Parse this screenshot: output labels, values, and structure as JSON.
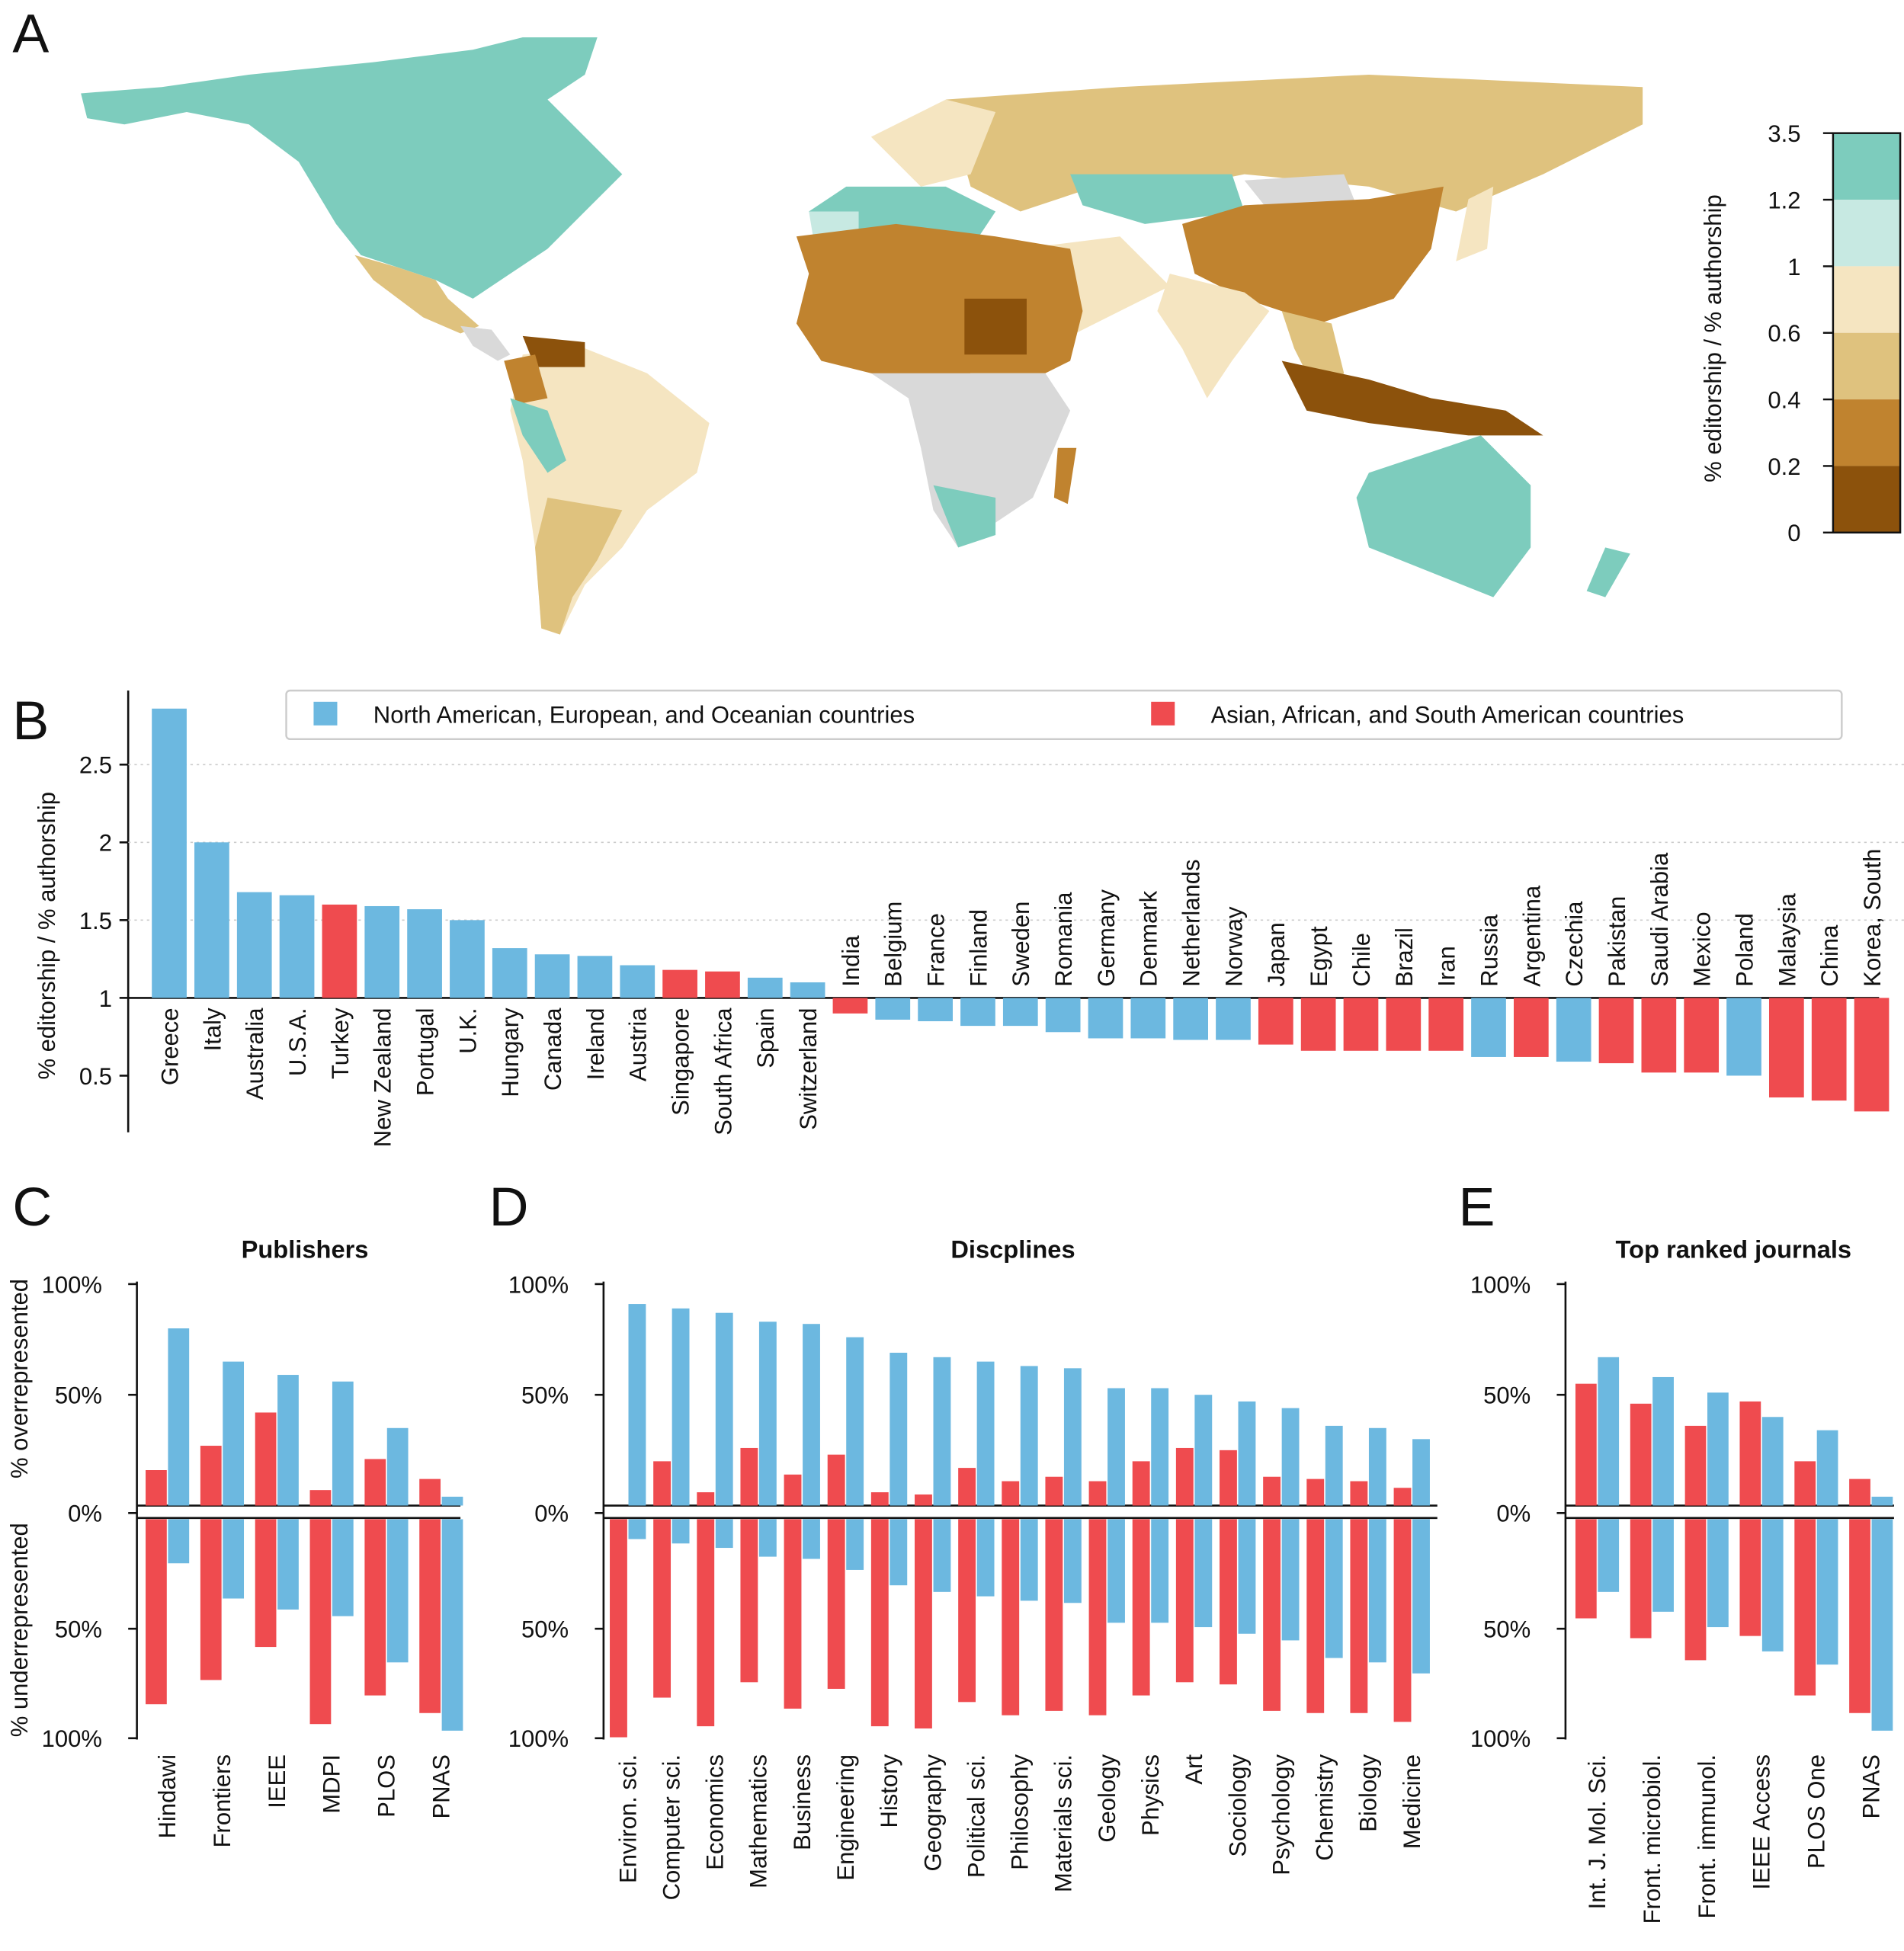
{
  "panel_letters": {
    "a": "A",
    "b": "B",
    "c": "C",
    "d": "D",
    "e": "E"
  },
  "colors": {
    "blue": "#6cb8e0",
    "red": "#ef4b4f",
    "map_nodata": "#d9d9d9"
  },
  "colorbar": {
    "label": "% editorship / % authorship",
    "ticks": [
      "3.5",
      "1.2",
      "1",
      "0.6",
      "0.4",
      "0.2",
      "0"
    ],
    "bins_top_to_bottom": [
      "#7dccbd",
      "#c7e9e2",
      "#f5e5c1",
      "#dfc27e",
      "#c0832f",
      "#8c520c"
    ]
  },
  "chart_data": [
    {
      "type": "bar",
      "panel": "B",
      "ylabel": "% editorship / % authorship",
      "baseline": 1,
      "yticks": [
        "0.5",
        "1",
        "1.5",
        "2",
        "2.5"
      ],
      "ylim": [
        0.2,
        3.0
      ],
      "grid": true,
      "legend": {
        "placement": "top",
        "entries": [
          {
            "name": "North American, European, and Oceanian countries",
            "color": "#6cb8e0"
          },
          {
            "name": "Asian, African, and South American countries",
            "color": "#ef4b4f"
          }
        ]
      },
      "categories": [
        "Greece",
        "Italy",
        "Australia",
        "U.S.A.",
        "Turkey",
        "New Zealand",
        "Portugal",
        "U.K.",
        "Hungary",
        "Canada",
        "Ireland",
        "Austria",
        "Singapore",
        "South Africa",
        "Spain",
        "Switzerland",
        "India",
        "Belgium",
        "France",
        "Finland",
        "Sweden",
        "Romania",
        "Germany",
        "Denmark",
        "Netherlands",
        "Norway",
        "Japan",
        "Egypt",
        "Chile",
        "Brazil",
        "Iran",
        "Russia",
        "Argentina",
        "Czechia",
        "Pakistan",
        "Saudi Arabia",
        "Mexico",
        "Poland",
        "Malaysia",
        "China",
        "Korea, South"
      ],
      "values": [
        2.86,
        2.0,
        1.68,
        1.66,
        1.6,
        1.59,
        1.57,
        1.5,
        1.32,
        1.28,
        1.27,
        1.21,
        1.18,
        1.17,
        1.13,
        1.1,
        0.9,
        0.86,
        0.85,
        0.82,
        0.82,
        0.78,
        0.74,
        0.74,
        0.73,
        0.73,
        0.7,
        0.66,
        0.66,
        0.66,
        0.66,
        0.62,
        0.62,
        0.59,
        0.58,
        0.52,
        0.52,
        0.5,
        0.36,
        0.34,
        0.27
      ],
      "group": [
        "b",
        "b",
        "b",
        "b",
        "r",
        "b",
        "b",
        "b",
        "b",
        "b",
        "b",
        "b",
        "r",
        "r",
        "b",
        "b",
        "r",
        "b",
        "b",
        "b",
        "b",
        "b",
        "b",
        "b",
        "b",
        "b",
        "r",
        "r",
        "r",
        "r",
        "r",
        "b",
        "r",
        "b",
        "r",
        "r",
        "r",
        "b",
        "r",
        "r",
        "r"
      ]
    },
    {
      "type": "bar",
      "panel": "C",
      "title": "Publishers",
      "ylabel_top": "% overrepresented",
      "ylabel_bottom": "% underrepresented",
      "yticks_top": [
        "100%",
        "50%",
        "0%"
      ],
      "yticks_bottom": [
        "50%",
        "100%"
      ],
      "categories": [
        "Hindawi",
        "Frontiers",
        "IEEE",
        "MDPI",
        "PLOS",
        "PNAS"
      ],
      "over_red": [
        16,
        27,
        42,
        7,
        21,
        12
      ],
      "over_blue": [
        80,
        65,
        59,
        56,
        35,
        4
      ],
      "under_red": [
        84,
        73,
        58,
        93,
        80,
        88
      ],
      "under_blue": [
        20,
        36,
        41,
        44,
        65,
        96
      ]
    },
    {
      "type": "bar",
      "panel": "D",
      "title": "Discplines",
      "yticks_top": [
        "100%",
        "50%",
        "0%"
      ],
      "yticks_bottom": [
        "50%",
        "100%"
      ],
      "categories": [
        "Environ. sci.",
        "Computer sci.",
        "Economics",
        "Mathematics",
        "Business",
        "Engineering",
        "History",
        "Geography",
        "Political sci.",
        "Philosophy",
        "Materials sci.",
        "Geology",
        "Physics",
        "Art",
        "Sociology",
        "Psychology",
        "Chemistry",
        "Biology",
        "Medicine"
      ],
      "over_red": [
        0,
        20,
        6,
        26,
        14,
        23,
        6,
        5,
        17,
        11,
        13,
        11,
        20,
        26,
        25,
        13,
        12,
        11,
        8
      ],
      "over_blue": [
        91,
        89,
        87,
        83,
        82,
        76,
        69,
        67,
        65,
        63,
        62,
        53,
        53,
        50,
        47,
        44,
        36,
        35,
        30
      ],
      "under_red": [
        99,
        81,
        94,
        74,
        86,
        77,
        94,
        95,
        83,
        89,
        87,
        89,
        80,
        74,
        75,
        87,
        88,
        88,
        92
      ],
      "under_blue": [
        9,
        11,
        13,
        17,
        18,
        23,
        30,
        33,
        35,
        37,
        38,
        47,
        47,
        49,
        52,
        55,
        63,
        65,
        70
      ]
    },
    {
      "type": "bar",
      "panel": "E",
      "title": "Top ranked journals",
      "yticks_top": [
        "100%",
        "50%",
        "0%"
      ],
      "yticks_bottom": [
        "50%",
        "100%"
      ],
      "categories": [
        "Int. J. Mol. Sci.",
        "Front. microbiol.",
        "Front. immunol.",
        "IEEE Access",
        "PLOS One",
        "PNAS"
      ],
      "over_red": [
        55,
        46,
        36,
        47,
        20,
        12
      ],
      "over_blue": [
        67,
        58,
        51,
        40,
        34,
        4
      ],
      "under_red": [
        45,
        54,
        64,
        53,
        80,
        88
      ],
      "under_blue": [
        33,
        42,
        49,
        60,
        66,
        96
      ]
    }
  ]
}
